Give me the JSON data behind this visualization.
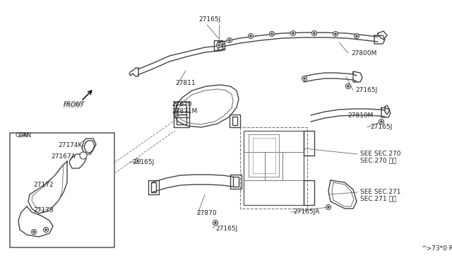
{
  "bg_color": "#ffffff",
  "line_color": "#555555",
  "fig_width": 6.4,
  "fig_height": 3.72,
  "dpi": 100,
  "labels": [
    [
      297,
      28,
      "27165J",
      "center"
    ],
    [
      497,
      75,
      "27800M",
      "left"
    ],
    [
      248,
      118,
      "27811",
      "left"
    ],
    [
      243,
      148,
      "27670",
      "left"
    ],
    [
      243,
      158,
      "27871M",
      "left"
    ],
    [
      503,
      128,
      "27165J",
      "left"
    ],
    [
      492,
      163,
      "27810M",
      "left"
    ],
    [
      524,
      180,
      "27165J",
      "left"
    ],
    [
      187,
      230,
      "27165J",
      "left"
    ],
    [
      510,
      218,
      "SEE SEC.270",
      "left"
    ],
    [
      510,
      227,
      "SEC.270 参照",
      "left"
    ],
    [
      510,
      272,
      "SEE SEC.271",
      "left"
    ],
    [
      510,
      281,
      "SEC.271 参照",
      "left"
    ],
    [
      278,
      302,
      "27870",
      "left"
    ],
    [
      305,
      323,
      "27165J",
      "left"
    ],
    [
      415,
      300,
      "27165JA",
      "left"
    ],
    [
      25,
      192,
      "CAN",
      "left"
    ],
    [
      82,
      205,
      "27174K",
      "left"
    ],
    [
      72,
      222,
      "27167A",
      "left"
    ],
    [
      47,
      262,
      "27172",
      "left"
    ],
    [
      47,
      298,
      "27173",
      "left"
    ],
    [
      596,
      352,
      "^>73*0·R",
      "left"
    ]
  ]
}
